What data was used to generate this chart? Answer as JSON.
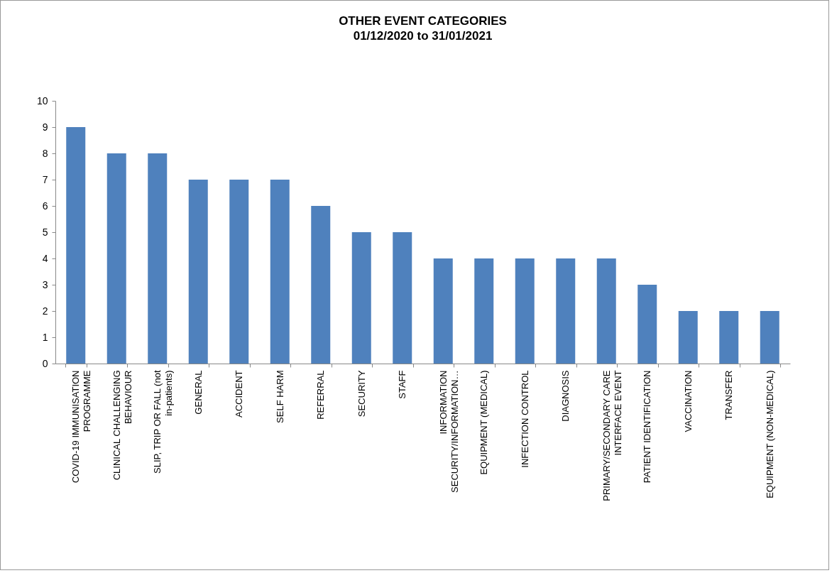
{
  "chart_data": {
    "type": "bar",
    "title": "OTHER EVENT CATEGORIES",
    "subtitle": "01/12/2020 to 31/01/2021",
    "categories": [
      "COVID-19 IMMUNISATION PROGRAMME",
      "CLINICAL CHALLENGING BEHAVIOUR",
      "SLIP, TRIP OR FALL (not in-patients)",
      "GENERAL",
      "ACCIDENT",
      "SELF HARM",
      "REFERRAL",
      "SECURITY",
      "STAFF",
      "INFORMATION SECURITY/INFORMATION…",
      "EQUIPMENT (MEDICAL)",
      "INFECTION CONTROL",
      "DIAGNOSIS",
      "PRIMARY/SECONDARY CARE INTERFACE EVENT",
      "PATIENT IDENTIFICATION",
      "VACCINATION",
      "TRANSFER",
      "EQUIPMENT (NON-MEDICAL)"
    ],
    "values": [
      9,
      8,
      8,
      7,
      7,
      7,
      6,
      5,
      5,
      4,
      4,
      4,
      4,
      4,
      3,
      2,
      2,
      2
    ],
    "color": "#4f81bd",
    "ylim": [
      0,
      10
    ],
    "yticks": [
      0,
      1,
      2,
      3,
      4,
      5,
      6,
      7,
      8,
      9,
      10
    ],
    "grid": false
  }
}
